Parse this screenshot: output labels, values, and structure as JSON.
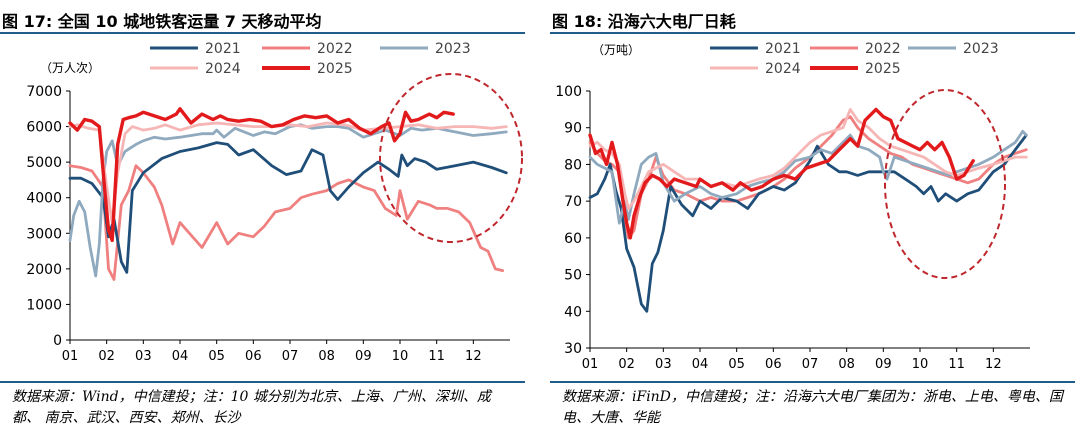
{
  "left": {
    "title": "图 17: 全国 10 城地铁客运量 7 天移动平均",
    "note": "数据来源：Wind，中信建投；注：10 城分别为北京、上海、广州、深圳、成都、 南京、武汉、西安、郑州、长沙"
  },
  "right": {
    "title": "图 18: 沿海六大电厂日耗",
    "note": "数据来源：iFinD，中信建投；注：沿海六大电厂集团为：浙电、上电、粤电、国电、大唐、华能"
  },
  "colors": {
    "rule": "#1f5c8a",
    "y2021": "#1f4e79",
    "y2022": "#f08080",
    "y2023": "#8fa9bf",
    "y2024": "#f7b6b6",
    "y2025": "#e31a1c",
    "ellipse": "#c0272d"
  },
  "chart_data": [
    {
      "type": "line",
      "unit_label": "（万人次）",
      "x_ticks": [
        "01",
        "02",
        "03",
        "04",
        "05",
        "06",
        "07",
        "08",
        "09",
        "10",
        "11",
        "12"
      ],
      "ylim": [
        0,
        7000
      ],
      "y_ticks": [
        "0",
        "1000",
        "2000",
        "3000",
        "4000",
        "5000",
        "6000",
        "7000"
      ],
      "annotation": "dashed-ellipse",
      "legend": "top",
      "series": [
        {
          "name": "2021",
          "color": "#1f4e79",
          "x": [
            1,
            1.3,
            1.6,
            1.9,
            2.05,
            2.2,
            2.4,
            2.55,
            2.7,
            3,
            3.5,
            4,
            4.5,
            5,
            5.3,
            5.6,
            6,
            6.5,
            6.9,
            7.3,
            7.6,
            7.9,
            8.1,
            8.3,
            8.6,
            9,
            9.4,
            9.7,
            9.95,
            10.05,
            10.2,
            10.4,
            10.7,
            11,
            11.5,
            12,
            12.5,
            12.9
          ],
          "values": [
            4550,
            4550,
            4400,
            4000,
            2900,
            3400,
            2200,
            1900,
            4200,
            4700,
            5100,
            5300,
            5400,
            5550,
            5500,
            5200,
            5350,
            4900,
            4650,
            4750,
            5350,
            5200,
            4200,
            3950,
            4300,
            4700,
            5000,
            4800,
            4600,
            5200,
            4900,
            5100,
            5000,
            4800,
            4900,
            5000,
            4850,
            4700
          ]
        },
        {
          "name": "2022",
          "color": "#f08080",
          "x": [
            1,
            1.3,
            1.6,
            1.9,
            2.05,
            2.2,
            2.4,
            2.6,
            2.8,
            3,
            3.3,
            3.5,
            3.8,
            4,
            4.3,
            4.6,
            5,
            5.3,
            5.6,
            6,
            6.3,
            6.6,
            7,
            7.3,
            7.6,
            8,
            8.3,
            8.6,
            9,
            9.3,
            9.6,
            9.9,
            10,
            10.2,
            10.5,
            10.8,
            11,
            11.3,
            11.6,
            11.9,
            12.2,
            12.4,
            12.6,
            12.8
          ],
          "values": [
            4900,
            4850,
            4750,
            4300,
            2000,
            1700,
            3800,
            4200,
            4900,
            4700,
            4300,
            3800,
            2700,
            3300,
            2950,
            2600,
            3300,
            2700,
            3000,
            2900,
            3200,
            3600,
            3700,
            4000,
            4100,
            4200,
            4400,
            4500,
            4300,
            4200,
            3700,
            3500,
            4200,
            3400,
            3900,
            3800,
            3700,
            3700,
            3600,
            3300,
            2600,
            2500,
            2000,
            1950
          ]
        },
        {
          "name": "2023",
          "color": "#8fa9bf",
          "x": [
            1,
            1.1,
            1.25,
            1.4,
            1.55,
            1.7,
            1.8,
            1.9,
            2,
            2.15,
            2.3,
            2.5,
            2.8,
            3,
            3.3,
            3.6,
            4,
            4.3,
            4.6,
            4.9,
            5,
            5.2,
            5.5,
            6,
            6.3,
            6.6,
            7,
            7.3,
            7.6,
            8,
            8.3,
            8.6,
            9,
            9.3,
            9.6,
            10,
            10.3,
            10.6,
            11,
            11.5,
            12,
            12.5,
            12.9
          ],
          "values": [
            2800,
            3500,
            3900,
            3600,
            2600,
            1800,
            2700,
            4500,
            5300,
            5600,
            4900,
            5300,
            5500,
            5600,
            5700,
            5650,
            5700,
            5750,
            5800,
            5800,
            5900,
            5700,
            5950,
            5750,
            5850,
            5800,
            6000,
            6050,
            5950,
            6000,
            6000,
            5950,
            5700,
            5800,
            5900,
            5750,
            5950,
            5900,
            5950,
            5850,
            5750,
            5800,
            5850
          ]
        },
        {
          "name": "2024",
          "color": "#f7b6b6",
          "x": [
            1,
            1.2,
            1.5,
            1.8,
            2,
            2.15,
            2.3,
            2.5,
            2.7,
            3,
            3.3,
            3.6,
            4,
            4.5,
            5,
            5.5,
            6,
            6.5,
            7,
            7.5,
            8,
            8.5,
            9,
            9.5,
            10,
            10.5,
            11,
            11.5,
            12,
            12.5,
            12.9
          ],
          "values": [
            6000,
            6050,
            5950,
            5900,
            4300,
            3300,
            4700,
            5800,
            6000,
            5900,
            5950,
            6050,
            5900,
            6050,
            6100,
            6050,
            6000,
            6000,
            6050,
            6000,
            6100,
            6050,
            5900,
            5950,
            6000,
            6050,
            5950,
            6000,
            6000,
            5950,
            6000
          ]
        },
        {
          "name": "2025",
          "color": "#e31a1c",
          "x": [
            1,
            1.2,
            1.4,
            1.6,
            1.8,
            1.95,
            2.05,
            2.15,
            2.3,
            2.45,
            2.6,
            2.8,
            3,
            3.3,
            3.6,
            3.9,
            4,
            4.3,
            4.6,
            4.9,
            5.1,
            5.3,
            5.6,
            5.9,
            6.2,
            6.5,
            6.8,
            7.1,
            7.4,
            7.7,
            8,
            8.3,
            8.6,
            8.9,
            9.2,
            9.5,
            9.7,
            9.85,
            10,
            10.15,
            10.3,
            10.5,
            10.8,
            11,
            11.2,
            11.45
          ],
          "values": [
            6100,
            5900,
            6200,
            6150,
            6000,
            4200,
            3100,
            2800,
            5500,
            6200,
            6250,
            6300,
            6400,
            6300,
            6200,
            6350,
            6500,
            6100,
            6350,
            6200,
            6300,
            6200,
            6150,
            6200,
            6150,
            6000,
            6050,
            6200,
            6300,
            6250,
            6300,
            6100,
            6200,
            5950,
            5800,
            6000,
            6100,
            5600,
            5800,
            6400,
            6150,
            6200,
            6350,
            6250,
            6400,
            6350
          ]
        }
      ]
    },
    {
      "type": "line",
      "unit_label": "（万吨）",
      "x_ticks": [
        "01",
        "02",
        "03",
        "04",
        "05",
        "06",
        "07",
        "08",
        "09",
        "10",
        "11",
        "12"
      ],
      "ylim": [
        30,
        100
      ],
      "y_ticks": [
        "30",
        "40",
        "50",
        "60",
        "70",
        "80",
        "90",
        "100"
      ],
      "annotation": "dashed-ellipse",
      "legend": "top",
      "series": [
        {
          "name": "2021",
          "color": "#1f4e79",
          "x": [
            1,
            1.2,
            1.4,
            1.55,
            1.7,
            1.85,
            2,
            2.2,
            2.4,
            2.55,
            2.7,
            2.85,
            3,
            3.2,
            3.5,
            3.8,
            4,
            4.3,
            4.6,
            5,
            5.3,
            5.6,
            6,
            6.3,
            6.6,
            6.8,
            7,
            7.2,
            7.5,
            7.8,
            8,
            8.3,
            8.6,
            9,
            9.3,
            9.6,
            9.9,
            10.1,
            10.3,
            10.5,
            10.7,
            11,
            11.3,
            11.6,
            12,
            12.3,
            12.6,
            12.9
          ],
          "values": [
            71,
            72,
            76,
            80,
            73,
            68,
            57,
            52,
            42,
            40,
            53,
            56,
            62,
            74,
            69,
            66,
            70,
            68,
            71,
            70,
            68,
            72,
            74,
            73,
            75,
            78,
            81,
            85,
            80,
            78,
            78,
            77,
            78,
            78,
            78,
            76,
            74,
            72,
            74,
            70,
            72,
            70,
            72,
            73,
            78,
            80,
            84,
            88
          ]
        },
        {
          "name": "2022",
          "color": "#f08080",
          "x": [
            1,
            1.2,
            1.4,
            1.6,
            1.8,
            1.95,
            2.05,
            2.2,
            2.4,
            2.6,
            2.8,
            3,
            3.3,
            3.6,
            4,
            4.3,
            4.6,
            5,
            5.3,
            5.6,
            6,
            6.3,
            6.6,
            7,
            7.3,
            7.6,
            7.9,
            8.1,
            8.3,
            8.6,
            8.9,
            9.2,
            9.5,
            9.8,
            10.1,
            10.4,
            10.7,
            11,
            11.3,
            11.6,
            12,
            12.3,
            12.6,
            12.9
          ],
          "values": [
            86,
            83,
            81,
            80,
            78,
            65,
            60,
            62,
            72,
            76,
            82,
            77,
            73,
            72,
            70,
            71,
            70,
            70,
            71,
            72,
            74,
            76,
            79,
            82,
            85,
            88,
            92,
            93,
            90,
            87,
            85,
            83,
            82,
            80,
            79,
            78,
            77,
            76,
            75,
            76,
            80,
            82,
            83,
            84
          ]
        },
        {
          "name": "2023",
          "color": "#8fa9bf",
          "x": [
            1,
            1.2,
            1.4,
            1.6,
            1.8,
            1.95,
            2.05,
            2.2,
            2.4,
            2.6,
            2.8,
            3,
            3.3,
            3.6,
            4,
            4.3,
            4.6,
            5,
            5.3,
            5.6,
            6,
            6.3,
            6.6,
            7,
            7.3,
            7.6,
            7.9,
            8.1,
            8.3,
            8.6,
            8.9,
            9,
            9.1,
            9.3,
            9.6,
            9.9,
            10.2,
            10.5,
            10.8,
            11,
            11.3,
            11.6,
            12,
            12.3,
            12.6,
            12.8,
            12.9
          ],
          "values": [
            82,
            80,
            79,
            78,
            64,
            70,
            65,
            72,
            80,
            82,
            83,
            75,
            70,
            72,
            74,
            72,
            71,
            72,
            74,
            75,
            76,
            78,
            81,
            82,
            84,
            83,
            86,
            88,
            85,
            84,
            82,
            78,
            76,
            82,
            81,
            80,
            79,
            78,
            77,
            78,
            79,
            80,
            82,
            84,
            86,
            89,
            88
          ]
        },
        {
          "name": "2024",
          "color": "#f7b6b6",
          "x": [
            1,
            1.2,
            1.4,
            1.6,
            1.8,
            1.95,
            2.05,
            2.2,
            2.4,
            2.6,
            2.8,
            3,
            3.3,
            3.6,
            4,
            4.3,
            4.6,
            5,
            5.3,
            5.6,
            6,
            6.3,
            6.6,
            7,
            7.3,
            7.6,
            7.9,
            8.1,
            8.3,
            8.6,
            8.9,
            9.2,
            9.5,
            9.8,
            10.1,
            10.4,
            10.7,
            11,
            11.3,
            11.6,
            12,
            12.3,
            12.6,
            12.9
          ],
          "values": [
            85,
            86,
            84,
            83,
            80,
            72,
            68,
            70,
            74,
            78,
            79,
            80,
            78,
            76,
            76,
            74,
            75,
            74,
            75,
            76,
            77,
            79,
            82,
            86,
            88,
            89,
            90,
            95,
            92,
            90,
            87,
            85,
            84,
            83,
            82,
            80,
            78,
            77,
            78,
            79,
            80,
            81,
            82,
            82
          ]
        },
        {
          "name": "2025",
          "color": "#e31a1c",
          "x": [
            1,
            1.15,
            1.3,
            1.45,
            1.6,
            1.75,
            1.9,
            2,
            2.1,
            2.2,
            2.35,
            2.5,
            2.7,
            2.9,
            3.1,
            3.3,
            3.6,
            3.9,
            4,
            4.3,
            4.6,
            4.9,
            5.1,
            5.4,
            5.7,
            6,
            6.3,
            6.6,
            6.9,
            7.2,
            7.5,
            7.8,
            8.1,
            8.3,
            8.5,
            8.8,
            9,
            9.2,
            9.4,
            9.6,
            9.8,
            10,
            10.2,
            10.4,
            10.6,
            10.8,
            11,
            11.2,
            11.45
          ],
          "values": [
            88,
            83,
            84,
            80,
            86,
            80,
            70,
            64,
            60,
            66,
            71,
            75,
            77,
            76,
            74,
            76,
            75,
            74,
            76,
            74,
            75,
            73,
            75,
            73,
            74,
            76,
            77,
            76,
            79,
            80,
            81,
            84,
            87,
            85,
            92,
            95,
            93,
            92,
            87,
            86,
            85,
            84,
            86,
            84,
            86,
            82,
            76,
            77,
            81
          ]
        }
      ]
    }
  ]
}
